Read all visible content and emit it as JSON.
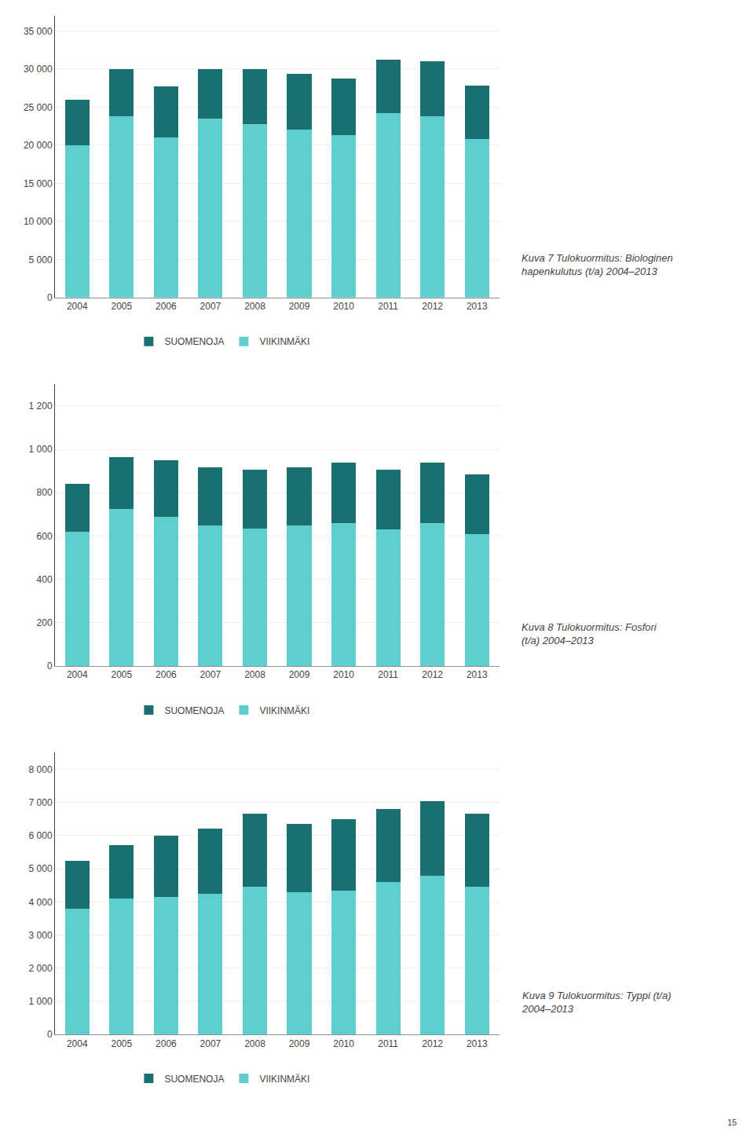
{
  "chart_data": [
    {
      "type": "bar",
      "stacked": true,
      "grid": true,
      "legend": "bottom",
      "title": "Kuva 7 Tulokuormitus: Biologinen\nhapenkulutus (t/a) 2004–2013",
      "categories": [
        "2004",
        "2005",
        "2006",
        "2007",
        "2008",
        "2009",
        "2010",
        "2011",
        "2012",
        "2013"
      ],
      "series": [
        {
          "name": "VIIKINMÄKI",
          "color": "#5ecece",
          "values": [
            20000,
            23800,
            21000,
            23500,
            22800,
            22000,
            21300,
            24200,
            23800,
            20800
          ]
        },
        {
          "name": "SUOMENOJA",
          "color": "#1a7070",
          "values": [
            6000,
            6200,
            6700,
            6500,
            7200,
            7400,
            7500,
            7000,
            7200,
            7000
          ]
        }
      ],
      "ylim": [
        0,
        37000
      ],
      "yticks": [
        0,
        {
          "value": 5000,
          "label": "5 000"
        },
        {
          "value": 10000,
          "label": "10 000"
        },
        {
          "value": 15000,
          "label": "15 000"
        },
        {
          "value": 20000,
          "label": "20 000"
        },
        {
          "value": 25000,
          "label": "25 000"
        },
        {
          "value": 30000,
          "label": "30 000"
        },
        {
          "value": 35000,
          "label": "35 000"
        }
      ]
    },
    {
      "type": "bar",
      "stacked": true,
      "grid": true,
      "legend": "bottom",
      "title": "Kuva 8 Tulokuormitus: Fosfori\n(t/a) 2004–2013",
      "categories": [
        "2004",
        "2005",
        "2006",
        "2007",
        "2008",
        "2009",
        "2010",
        "2011",
        "2012",
        "2013"
      ],
      "series": [
        {
          "name": "VIIKINMÄKI",
          "color": "#5ecece",
          "values": [
            620,
            725,
            690,
            650,
            635,
            650,
            660,
            630,
            660,
            610
          ]
        },
        {
          "name": "SUOMENOJA",
          "color": "#1a7070",
          "values": [
            220,
            240,
            260,
            265,
            270,
            265,
            280,
            275,
            280,
            275
          ]
        }
      ],
      "ylim": [
        0,
        1300
      ],
      "yticks": [
        0,
        200,
        400,
        600,
        800,
        {
          "value": 1000,
          "label": "1 000"
        },
        {
          "value": 1200,
          "label": "1 200"
        }
      ]
    },
    {
      "type": "bar",
      "stacked": true,
      "grid": true,
      "legend": "bottom",
      "title": "Kuva 9 Tulokuormitus: Typpi (t/a)\n2004–2013",
      "categories": [
        "2004",
        "2005",
        "2006",
        "2007",
        "2008",
        "2009",
        "2010",
        "2011",
        "2012",
        "2013"
      ],
      "series": [
        {
          "name": "VIIKINMÄKI",
          "color": "#5ecece",
          "values": [
            3800,
            4100,
            4150,
            4250,
            4450,
            4300,
            4350,
            4600,
            4800,
            4450
          ]
        },
        {
          "name": "SUOMENOJA",
          "color": "#1a7070",
          "values": [
            1450,
            1620,
            1850,
            1950,
            2200,
            2050,
            2150,
            2200,
            2250,
            2200
          ]
        }
      ],
      "ylim": [
        0,
        8500
      ],
      "yticks": [
        0,
        {
          "value": 1000,
          "label": "1 000"
        },
        {
          "value": 2000,
          "label": "2 000"
        },
        {
          "value": 3000,
          "label": "3 000"
        },
        {
          "value": 4000,
          "label": "4 000"
        },
        {
          "value": 5000,
          "label": "5 000"
        },
        {
          "value": 6000,
          "label": "6 000"
        },
        {
          "value": 7000,
          "label": "7 000"
        },
        {
          "value": 8000,
          "label": "8 000"
        }
      ],
      "annotations": [
        "15"
      ]
    }
  ]
}
